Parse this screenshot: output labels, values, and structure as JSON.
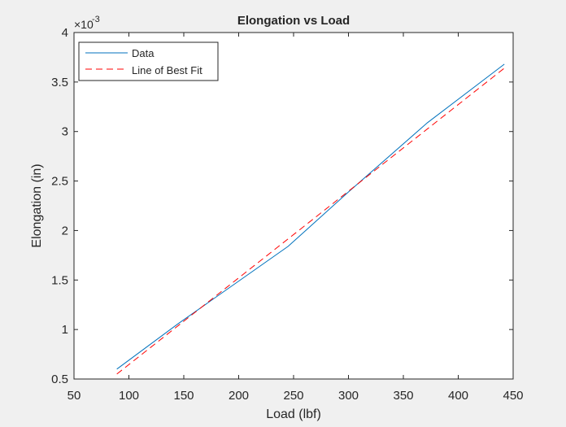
{
  "chart_data": {
    "type": "line",
    "title": "Elongation vs Load",
    "xlabel": "Load (lbf)",
    "ylabel": "Elongation (in)",
    "y_exponent_label": "×10",
    "y_exponent_power": "-3",
    "xlim": [
      50,
      450
    ],
    "ylim": [
      0.5,
      4
    ],
    "xticks": [
      50,
      100,
      150,
      200,
      250,
      300,
      350,
      400,
      450
    ],
    "yticks": [
      0.5,
      1,
      1.5,
      2,
      2.5,
      3,
      3.5,
      4
    ],
    "legend_location": "top-left",
    "grid": false,
    "series": [
      {
        "name": "Data",
        "style": "solid",
        "color": "#0072bd",
        "x": [
          89,
          145,
          195,
          245,
          300,
          372,
          442
        ],
        "y": [
          0.6,
          1.06,
          1.45,
          1.84,
          2.39,
          3.09,
          3.68
        ]
      },
      {
        "name": "Line of Best Fit",
        "style": "dashed",
        "color": "#ff0000",
        "x": [
          89,
          442
        ],
        "y": [
          0.55,
          3.64
        ]
      }
    ]
  }
}
